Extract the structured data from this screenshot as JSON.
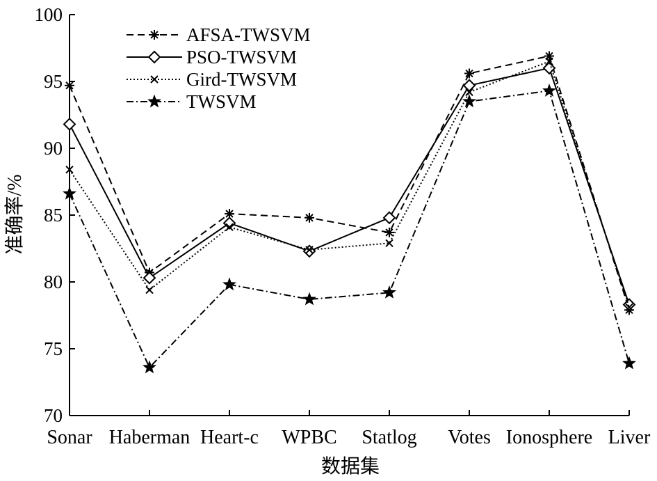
{
  "chart_data": {
    "type": "line",
    "title": "",
    "xlabel": "数据集",
    "ylabel": "准确率/%",
    "categories": [
      "Sonar",
      "Haberman",
      "Heart-c",
      "WPBC",
      "Statlog",
      "Votes",
      "Ionosphere",
      "Liver"
    ],
    "ylim": [
      70,
      100
    ],
    "yticks": [
      70,
      75,
      80,
      85,
      90,
      95,
      100
    ],
    "grid": false,
    "legend_position": "top-left",
    "series": [
      {
        "name": "AFSA-TWSVM",
        "marker": "asterisk",
        "dash": "dashed",
        "values": [
          94.7,
          80.7,
          85.1,
          84.8,
          83.7,
          95.6,
          96.9,
          77.9
        ]
      },
      {
        "name": "PSO-TWSVM",
        "marker": "diamond",
        "dash": "solid",
        "values": [
          91.8,
          80.3,
          84.4,
          82.3,
          84.8,
          94.7,
          96.0,
          78.3
        ]
      },
      {
        "name": "Gird-TWSVM",
        "marker": "x",
        "dash": "dotted",
        "values": [
          88.4,
          79.4,
          84.1,
          82.4,
          82.9,
          94.2,
          96.5,
          78.1
        ]
      },
      {
        "name": "TWSVM",
        "marker": "star",
        "dash": "dashdot",
        "values": [
          86.6,
          73.6,
          79.8,
          78.7,
          79.2,
          93.5,
          94.3,
          73.9
        ]
      }
    ]
  }
}
